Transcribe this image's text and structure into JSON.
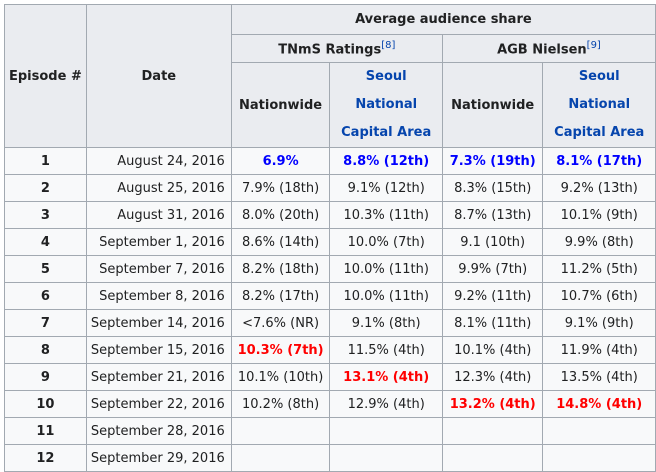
{
  "table": {
    "header": {
      "episode": "Episode #",
      "date": "Date",
      "average": "Average audience share",
      "tnms": "TNmS Ratings",
      "tnms_ref": "[8]",
      "agb": "AGB Nielsen",
      "agb_ref": "[9]",
      "nationwide": "Nationwide",
      "seoul": "Seoul National Capital Area",
      "nationwide_2": "Nationwide",
      "seoul_2": "Seoul National Capital Area"
    },
    "rows": [
      {
        "ep": "1",
        "date": "August 24, 2016",
        "tnms_nat": "6.9%",
        "tnms_seoul": "8.8% (12th)",
        "agb_nat": "7.3% (19th)",
        "agb_seoul": "8.1% (17th)"
      },
      {
        "ep": "2",
        "date": "August 25, 2016",
        "tnms_nat": "7.9% (18th)",
        "tnms_seoul": "9.1% (12th)",
        "agb_nat": "8.3% (15th)",
        "agb_seoul": "9.2% (13th)"
      },
      {
        "ep": "3",
        "date": "August 31, 2016",
        "tnms_nat": "8.0% (20th)",
        "tnms_seoul": "10.3% (11th)",
        "agb_nat": "8.7% (13th)",
        "agb_seoul": "10.1% (9th)"
      },
      {
        "ep": "4",
        "date": "September 1, 2016",
        "tnms_nat": "8.6% (14th)",
        "tnms_seoul": "10.0% (7th)",
        "agb_nat": "9.1 (10th)",
        "agb_seoul": "9.9% (8th)"
      },
      {
        "ep": "5",
        "date": "September 7, 2016",
        "tnms_nat": "8.2% (18th)",
        "tnms_seoul": "10.0% (11th)",
        "agb_nat": "9.9% (7th)",
        "agb_seoul": "11.2% (5th)"
      },
      {
        "ep": "6",
        "date": "September 8, 2016",
        "tnms_nat": "8.2% (17th)",
        "tnms_seoul": "10.0% (11th)",
        "agb_nat": "9.2% (11th)",
        "agb_seoul": "10.7% (6th)"
      },
      {
        "ep": "7",
        "date": "September 14, 2016",
        "tnms_nat": "<7.6% (NR)",
        "tnms_seoul": "9.1% (8th)",
        "agb_nat": "8.1% (11th)",
        "agb_seoul": "9.1% (9th)"
      },
      {
        "ep": "8",
        "date": "September 15, 2016",
        "tnms_nat": "10.3% (7th)",
        "tnms_seoul": "11.5% (4th)",
        "agb_nat": "10.1% (4th)",
        "agb_seoul": "11.9% (4th)"
      },
      {
        "ep": "9",
        "date": "September 21, 2016",
        "tnms_nat": "10.1% (10th)",
        "tnms_seoul": "13.1% (4th)",
        "agb_nat": "12.3% (4th)",
        "agb_seoul": "13.5% (4th)"
      },
      {
        "ep": "10",
        "date": "September 22, 2016",
        "tnms_nat": "10.2% (8th)",
        "tnms_seoul": "12.9% (4th)",
        "agb_nat": "13.2% (4th)",
        "agb_seoul": "14.8% (4th)"
      },
      {
        "ep": "11",
        "date": "September 28, 2016",
        "tnms_nat": "",
        "tnms_seoul": "",
        "agb_nat": "",
        "agb_seoul": ""
      },
      {
        "ep": "12",
        "date": "September 29, 2016",
        "tnms_nat": "",
        "tnms_seoul": "",
        "agb_nat": "",
        "agb_seoul": ""
      }
    ],
    "colors": {
      "lowest": "#0000ff",
      "highest": "#ff0000",
      "link": "#0645ad",
      "header_bg": "#eaecf0",
      "cell_bg": "#f8f9fa",
      "border": "#a2a9b1"
    }
  }
}
